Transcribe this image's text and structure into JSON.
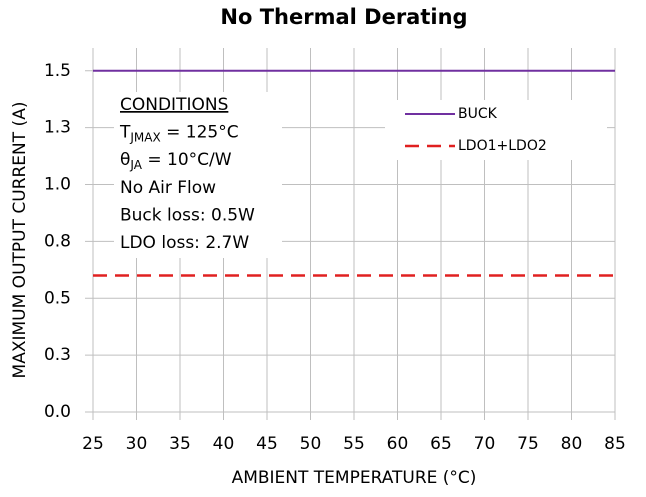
{
  "chart_data": {
    "type": "line",
    "title": "No Thermal Derating",
    "x_label": "AMBIENT TEMPERATURE (°C)",
    "y_label": "MAXIMUM OUTPUT  CURRENT (A)",
    "x": [
      25,
      85
    ],
    "series": [
      {
        "name": "BUCK",
        "color": "#7030a0",
        "dash": false,
        "values": [
          1.5,
          1.5
        ]
      },
      {
        "name": "LDO1+LDO2",
        "color": "#e02020",
        "dash": true,
        "values": [
          0.6,
          0.6
        ]
      }
    ],
    "xlim": [
      25,
      85
    ],
    "xticks": [
      25,
      30,
      35,
      40,
      45,
      50,
      55,
      60,
      65,
      70,
      75,
      80,
      85
    ],
    "ylim": [
      0,
      1.6
    ],
    "yticks": [
      {
        "value": 0,
        "label": "0.0"
      },
      {
        "value": 0.25,
        "label": "0.3"
      },
      0.5,
      {
        "value": 0.75,
        "label": "0.8"
      },
      {
        "value": 1,
        "label": "1.0"
      },
      {
        "value": 1.25,
        "label": "1.3"
      },
      1.5
    ],
    "grid": true,
    "legend": "upper right",
    "annotations": [
      {
        "text": "CONDITIONS"
      },
      {
        "main": "T",
        "sub": "JMAX",
        "rest": " = 125°C"
      },
      {
        "main": "θ",
        "sub": "JA",
        "rest": " = 10°C/W"
      },
      {
        "text": "No Air Flow"
      },
      {
        "text": "Buck loss: 0.5W"
      },
      {
        "text": "LDO loss: 2.7W"
      }
    ]
  }
}
